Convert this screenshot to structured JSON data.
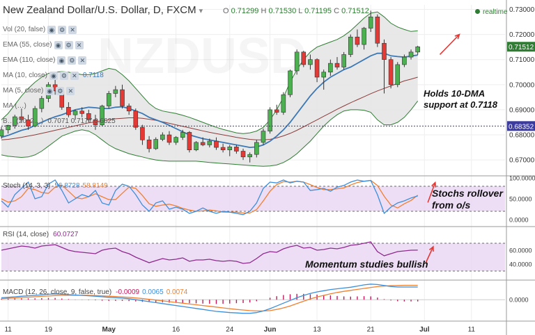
{
  "header": {
    "title": "New Zealand Dollar/U.S. Dollar, D, FXCM",
    "ohlc": {
      "o_label": "O",
      "o": "0.71299",
      "h_label": "H",
      "h": "0.71530",
      "l_label": "L",
      "l": "0.71195",
      "c_label": "C",
      "c": "0.71512"
    },
    "status": "realtime"
  },
  "indicators": [
    {
      "label": "Vol (20, false)",
      "value": ""
    },
    {
      "label": "EMA (55, close)",
      "value": ""
    },
    {
      "label": "EMA (110, close)",
      "value": ""
    },
    {
      "label": "MA (10, close)",
      "value": "0.7118"
    },
    {
      "label": "MA (5, close)",
      "value": ""
    },
    {
      "label": "MA (…)",
      "value": ""
    },
    {
      "label": "B… (20, 2…)",
      "value": "0.7071  0.7177  0.6625"
    }
  ],
  "panels": {
    "stoch": {
      "label": "Stoch (14, 3, 3)",
      "v1": "56.8728",
      "v2": "58.8149"
    },
    "rsi": {
      "label": "RSI (14, close)",
      "v1": "60.0727"
    },
    "macd": {
      "label": "MACD (12, 26, close, 9, false, true)",
      "v1": "-0.0009",
      "v2": "0.0065",
      "v3": "0.0074"
    }
  },
  "annotations": {
    "holds": [
      "Holds 10-DMA",
      "support at 0.7118"
    ],
    "stochs": [
      "Stochs rollover",
      "from o/s"
    ],
    "momentum": "Momentum studies bullish"
  },
  "watermark": "NZDUSD",
  "colors": {
    "up": "#4caf50",
    "down": "#e53935",
    "ma10": "#3b78b5",
    "slow_ma": "#8d3b3b",
    "bb_fill": "#e4e4e4",
    "bb_line": "#2e7d32",
    "stoch_k": "#3b8edb",
    "stoch_d": "#f08030",
    "osc_band": "#e8d5f3",
    "rsi": "#8e2a8e",
    "macd": "#3b8edb",
    "signal": "#f08030",
    "hist": "#c2185b",
    "arrow": "#e53935",
    "last_price": "#2e7d32",
    "ref_level": "#3a3aa0"
  },
  "chart_data": {
    "type": "candlestick",
    "title": "New Zealand Dollar/U.S. Dollar, D, FXCM",
    "price_axis": {
      "ticks": [
        "0.73000",
        "0.72000",
        "0.71000",
        "0.70000",
        "0.69000",
        "0.68000",
        "0.67000"
      ],
      "ylim": [
        0.6645,
        0.7318
      ]
    },
    "last_price": "0.71512",
    "ref_level": {
      "value": 0.68352,
      "label": "0.68352"
    },
    "x_ticks": [
      {
        "i": 1,
        "label": "11"
      },
      {
        "i": 7,
        "label": "19"
      },
      {
        "i": 16,
        "label": "May"
      },
      {
        "i": 26,
        "label": "16"
      },
      {
        "i": 34,
        "label": "24"
      },
      {
        "i": 40,
        "label": "Jun"
      },
      {
        "i": 47,
        "label": "13"
      },
      {
        "i": 55,
        "label": "21"
      },
      {
        "i": 63,
        "label": "Jul"
      },
      {
        "i": 70,
        "label": "11"
      }
    ],
    "x_domain": [
      0,
      75
    ],
    "candles": [
      [
        0.6795,
        0.6832,
        0.6785,
        0.682
      ],
      [
        0.682,
        0.684,
        0.6805,
        0.6838
      ],
      [
        0.6838,
        0.688,
        0.6825,
        0.6872
      ],
      [
        0.6872,
        0.6905,
        0.685,
        0.686
      ],
      [
        0.686,
        0.688,
        0.682,
        0.6835
      ],
      [
        0.6835,
        0.6915,
        0.683,
        0.6905
      ],
      [
        0.6905,
        0.6955,
        0.689,
        0.6945
      ],
      [
        0.6945,
        0.701,
        0.693,
        0.7
      ],
      [
        0.7,
        0.702,
        0.696,
        0.6975
      ],
      [
        0.6975,
        0.699,
        0.69,
        0.691
      ],
      [
        0.691,
        0.693,
        0.687,
        0.688
      ],
      [
        0.688,
        0.69,
        0.686,
        0.6895
      ],
      [
        0.6895,
        0.691,
        0.687,
        0.6885
      ],
      [
        0.6885,
        0.69,
        0.685,
        0.686
      ],
      [
        0.686,
        0.688,
        0.682,
        0.684
      ],
      [
        0.684,
        0.692,
        0.6835,
        0.6915
      ],
      [
        0.6915,
        0.6975,
        0.6905,
        0.6965
      ],
      [
        0.6965,
        0.6995,
        0.695,
        0.698
      ],
      [
        0.698,
        0.7,
        0.6905,
        0.6915
      ],
      [
        0.6915,
        0.6925,
        0.688,
        0.6895
      ],
      [
        0.6895,
        0.6905,
        0.682,
        0.683
      ],
      [
        0.683,
        0.684,
        0.676,
        0.678
      ],
      [
        0.678,
        0.6795,
        0.673,
        0.6745
      ],
      [
        0.6745,
        0.679,
        0.674,
        0.6782
      ],
      [
        0.6782,
        0.681,
        0.6775,
        0.68
      ],
      [
        0.68,
        0.6815,
        0.676,
        0.677
      ],
      [
        0.677,
        0.6795,
        0.676,
        0.679
      ],
      [
        0.679,
        0.682,
        0.678,
        0.681
      ],
      [
        0.681,
        0.6815,
        0.673,
        0.674
      ],
      [
        0.674,
        0.6775,
        0.6735,
        0.677
      ],
      [
        0.677,
        0.679,
        0.6755,
        0.676
      ],
      [
        0.676,
        0.6785,
        0.675,
        0.6775
      ],
      [
        0.6775,
        0.679,
        0.674,
        0.675
      ],
      [
        0.675,
        0.6765,
        0.673,
        0.674
      ],
      [
        0.674,
        0.676,
        0.6715,
        0.6752
      ],
      [
        0.6752,
        0.676,
        0.6725,
        0.6735
      ],
      [
        0.6735,
        0.6745,
        0.67,
        0.6712
      ],
      [
        0.6712,
        0.673,
        0.669,
        0.6722
      ],
      [
        0.6722,
        0.678,
        0.671,
        0.677
      ],
      [
        0.677,
        0.6825,
        0.676,
        0.6815
      ],
      [
        0.6815,
        0.691,
        0.6805,
        0.69
      ],
      [
        0.69,
        0.692,
        0.688,
        0.689
      ],
      [
        0.689,
        0.697,
        0.688,
        0.696
      ],
      [
        0.696,
        0.706,
        0.695,
        0.7055
      ],
      [
        0.7055,
        0.714,
        0.704,
        0.713
      ],
      [
        0.713,
        0.7135,
        0.707,
        0.708
      ],
      [
        0.708,
        0.712,
        0.706,
        0.71
      ],
      [
        0.71,
        0.7105,
        0.701,
        0.703
      ],
      [
        0.703,
        0.706,
        0.698,
        0.705
      ],
      [
        0.705,
        0.71,
        0.7035,
        0.7085
      ],
      [
        0.7085,
        0.711,
        0.706,
        0.707
      ],
      [
        0.707,
        0.713,
        0.706,
        0.712
      ],
      [
        0.712,
        0.72,
        0.711,
        0.719
      ],
      [
        0.719,
        0.722,
        0.715,
        0.716
      ],
      [
        0.716,
        0.723,
        0.714,
        0.7225
      ],
      [
        0.7225,
        0.7295,
        0.721,
        0.727
      ],
      [
        0.727,
        0.728,
        0.715,
        0.7165
      ],
      [
        0.7165,
        0.718,
        0.6965,
        0.71
      ],
      [
        0.71,
        0.711,
        0.6985,
        0.7
      ],
      [
        0.7,
        0.709,
        0.699,
        0.708
      ],
      [
        0.708,
        0.712,
        0.707,
        0.711
      ],
      [
        0.711,
        0.714,
        0.71,
        0.713
      ],
      [
        0.713,
        0.7155,
        0.7119,
        0.7151
      ]
    ],
    "ma10": [
      0.679,
      0.6798,
      0.6808,
      0.6818,
      0.6825,
      0.6838,
      0.685,
      0.6862,
      0.6872,
      0.688,
      0.689,
      0.69,
      0.6905,
      0.691,
      0.6908,
      0.6905,
      0.6905,
      0.691,
      0.6912,
      0.6905,
      0.6895,
      0.6885,
      0.687,
      0.686,
      0.685,
      0.6838,
      0.6825,
      0.6812,
      0.68,
      0.6792,
      0.6785,
      0.678,
      0.6775,
      0.677,
      0.6765,
      0.676,
      0.6755,
      0.675,
      0.6752,
      0.676,
      0.6775,
      0.6795,
      0.682,
      0.685,
      0.6885,
      0.692,
      0.6955,
      0.6985,
      0.701,
      0.703,
      0.7045,
      0.706,
      0.707,
      0.7085,
      0.71,
      0.7115,
      0.7125,
      0.7125,
      0.7115,
      0.7112,
      0.711,
      0.7114,
      0.7118
    ],
    "ma_slow": [
      0.678,
      0.6782,
      0.6786,
      0.679,
      0.6795,
      0.68,
      0.6806,
      0.6812,
      0.6818,
      0.6824,
      0.683,
      0.6836,
      0.6842,
      0.6848,
      0.6852,
      0.6856,
      0.686,
      0.6864,
      0.6866,
      0.6868,
      0.6868,
      0.6866,
      0.6862,
      0.6858,
      0.6852,
      0.6846,
      0.684,
      0.6834,
      0.6828,
      0.6822,
      0.6816,
      0.681,
      0.6805,
      0.68,
      0.6795,
      0.679,
      0.6786,
      0.6782,
      0.678,
      0.678,
      0.6782,
      0.6788,
      0.6796,
      0.6806,
      0.6818,
      0.6832,
      0.6846,
      0.686,
      0.6874,
      0.6888,
      0.6902,
      0.6915,
      0.6928,
      0.694,
      0.6952,
      0.6964,
      0.6975,
      0.6985,
      0.6995,
      0.7005,
      0.7015,
      0.7022,
      0.703
    ],
    "bb_upper": [
      0.686,
      0.6885,
      0.692,
      0.6955,
      0.6985,
      0.701,
      0.703,
      0.7045,
      0.705,
      0.7052,
      0.705,
      0.7045,
      0.704,
      0.704,
      0.7045,
      0.7055,
      0.7065,
      0.706,
      0.704,
      0.7015,
      0.6985,
      0.6955,
      0.6925,
      0.6905,
      0.6895,
      0.689,
      0.6885,
      0.6878,
      0.687,
      0.686,
      0.685,
      0.684,
      0.683,
      0.6822,
      0.6815,
      0.6808,
      0.6805,
      0.6808,
      0.6815,
      0.683,
      0.686,
      0.69,
      0.695,
      0.701,
      0.706,
      0.71,
      0.713,
      0.715,
      0.716,
      0.717,
      0.718,
      0.7195,
      0.7215,
      0.724,
      0.7265,
      0.7285,
      0.729,
      0.727,
      0.7245,
      0.723,
      0.722,
      0.7212,
      0.7215
    ],
    "bb_lower": [
      0.672,
      0.6715,
      0.6712,
      0.671,
      0.6712,
      0.672,
      0.6735,
      0.6755,
      0.6775,
      0.6795,
      0.6805,
      0.6815,
      0.682,
      0.6815,
      0.68,
      0.678,
      0.676,
      0.6745,
      0.6735,
      0.6725,
      0.6718,
      0.6712,
      0.6705,
      0.67,
      0.6697,
      0.6695,
      0.6695,
      0.6695,
      0.6695,
      0.6695,
      0.6693,
      0.669,
      0.6688,
      0.6686,
      0.6684,
      0.6682,
      0.668,
      0.6678,
      0.6676,
      0.6675,
      0.6676,
      0.668,
      0.669,
      0.6705,
      0.6725,
      0.675,
      0.6775,
      0.6805,
      0.6835,
      0.686,
      0.688,
      0.6895,
      0.69,
      0.69,
      0.6898,
      0.689,
      0.686,
      0.684,
      0.684,
      0.685,
      0.687,
      0.69,
      0.6935
    ],
    "stoch": {
      "range": [
        0,
        100
      ],
      "levels": [
        20,
        80
      ],
      "ticks": [
        "100.0000",
        "50.0000",
        "0.0000"
      ],
      "k": [
        45,
        30,
        60,
        75,
        90,
        50,
        55,
        85,
        95,
        70,
        40,
        50,
        60,
        55,
        70,
        40,
        35,
        70,
        85,
        80,
        60,
        35,
        20,
        40,
        45,
        25,
        30,
        25,
        15,
        20,
        28,
        20,
        15,
        20,
        18,
        15,
        12,
        20,
        40,
        75,
        90,
        88,
        95,
        88,
        92,
        90,
        70,
        72,
        75,
        68,
        78,
        82,
        90,
        95,
        92,
        94,
        60,
        15,
        30,
        40,
        45,
        52,
        56.87
      ],
      "d": [
        50,
        42,
        45,
        55,
        75,
        72,
        65,
        63,
        78,
        83,
        68,
        53,
        50,
        55,
        62,
        55,
        48,
        48,
        63,
        78,
        75,
        58,
        38,
        32,
        35,
        37,
        33,
        27,
        23,
        20,
        21,
        23,
        21,
        18,
        18,
        18,
        16,
        16,
        24,
        45,
        68,
        84,
        91,
        90,
        92,
        90,
        84,
        77,
        72,
        72,
        74,
        76,
        83,
        89,
        92,
        94,
        82,
        56,
        35,
        28,
        38,
        46,
        58.81
      ]
    },
    "rsi": {
      "range": [
        20,
        90
      ],
      "levels": [
        30,
        70
      ],
      "ticks": [
        "60.0000",
        "40.0000"
      ],
      "values": [
        60,
        62,
        64,
        66,
        65,
        63,
        66,
        67,
        68,
        64,
        60,
        58,
        57,
        56,
        55,
        60,
        62,
        63,
        58,
        55,
        50,
        46,
        42,
        45,
        48,
        46,
        47,
        49,
        44,
        46,
        46,
        47,
        45,
        44,
        45,
        44,
        41,
        42,
        48,
        55,
        58,
        57,
        62,
        65,
        67,
        63,
        64,
        60,
        61,
        63,
        62,
        64,
        67,
        68,
        70,
        72,
        58,
        52,
        55,
        58,
        59,
        60,
        60.07
      ]
    },
    "macd": {
      "range": [
        -0.011,
        0.009
      ],
      "ticks": [
        "0.0000"
      ],
      "macd": [
        0.001,
        0.0012,
        0.0015,
        0.0018,
        0.002,
        0.0022,
        0.0025,
        0.0028,
        0.003,
        0.0028,
        0.0026,
        0.0024,
        0.0022,
        0.002,
        0.0018,
        0.0015,
        0.0012,
        0.001,
        0.0008,
        0.0005,
        0.0,
        -0.0005,
        -0.001,
        -0.0015,
        -0.002,
        -0.0025,
        -0.003,
        -0.0035,
        -0.004,
        -0.0045,
        -0.005,
        -0.0055,
        -0.006,
        -0.0063,
        -0.0066,
        -0.0068,
        -0.007,
        -0.007,
        -0.0066,
        -0.0058,
        -0.0046,
        -0.0032,
        -0.0018,
        -0.0004,
        0.001,
        0.0022,
        0.0032,
        0.004,
        0.0046,
        0.0052,
        0.0056,
        0.006,
        0.0064,
        0.007,
        0.0076,
        0.008,
        0.0078,
        0.0073,
        0.0068,
        0.0065,
        0.0065,
        0.0065,
        0.0065
      ],
      "signal": [
        0.0005,
        0.0007,
        0.0009,
        0.0011,
        0.0013,
        0.0015,
        0.0017,
        0.0019,
        0.0021,
        0.0022,
        0.0023,
        0.0023,
        0.0023,
        0.0022,
        0.0021,
        0.002,
        0.0018,
        0.0016,
        0.0014,
        0.0012,
        0.0009,
        0.0006,
        0.0002,
        -0.0002,
        -0.0006,
        -0.001,
        -0.0014,
        -0.0018,
        -0.0022,
        -0.0026,
        -0.003,
        -0.0034,
        -0.0038,
        -0.0042,
        -0.0046,
        -0.005,
        -0.0053,
        -0.0056,
        -0.0058,
        -0.0058,
        -0.0056,
        -0.005,
        -0.0042,
        -0.0032,
        -0.002,
        -0.0008,
        0.0004,
        0.0014,
        0.0022,
        0.003,
        0.0037,
        0.0043,
        0.0048,
        0.0053,
        0.0058,
        0.0063,
        0.0067,
        0.007,
        0.0072,
        0.0073,
        0.0074,
        0.0074,
        0.0074
      ],
      "hist": [
        0.0005,
        0.0005,
        0.0006,
        0.0007,
        0.0007,
        0.0007,
        0.0008,
        0.0009,
        0.0009,
        0.0006,
        0.0003,
        0.0001,
        -0.0001,
        -0.0002,
        -0.0003,
        -0.0005,
        -0.0006,
        -0.0006,
        -0.0006,
        -0.0007,
        -0.0009,
        -0.0011,
        -0.0012,
        -0.0013,
        -0.0014,
        -0.0015,
        -0.0016,
        -0.0017,
        -0.0018,
        -0.0019,
        -0.002,
        -0.0021,
        -0.0022,
        -0.0021,
        -0.002,
        -0.0018,
        -0.0017,
        -0.0014,
        -0.0008,
        0.0,
        0.001,
        0.0018,
        0.0024,
        0.0028,
        0.003,
        0.003,
        0.0028,
        0.0026,
        0.0024,
        0.0022,
        0.0019,
        0.0017,
        0.0016,
        0.0017,
        0.0018,
        0.0017,
        0.0011,
        0.0003,
        -0.0004,
        -0.0008,
        -0.0009,
        -0.0009,
        -0.0009
      ]
    }
  }
}
